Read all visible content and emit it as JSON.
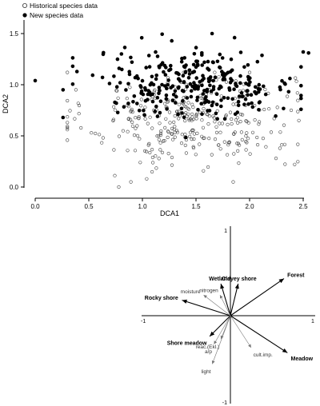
{
  "chart_data": [
    {
      "type": "scatter",
      "xlabel": "DCA1",
      "ylabel": "DCA2",
      "xlim": [
        -0.1,
        2.6
      ],
      "ylim": [
        -0.05,
        1.6
      ],
      "xticks": [
        "0.0",
        "0.5",
        "1.0",
        "1.5",
        "2.0",
        "2.5"
      ],
      "yticks": [
        "0.0",
        "0.5",
        "1.0",
        "1.5"
      ],
      "legend": {
        "placement": "top-left"
      },
      "series": [
        {
          "name": "Historical species data",
          "marker": "open-circle",
          "color": "#333333"
        },
        {
          "name": "New species data",
          "marker": "filled-circle",
          "color": "#000000"
        }
      ]
    },
    {
      "type": "biplot",
      "axis_tick_labels": {
        "top": "1",
        "bottom": "-1",
        "left": "-1",
        "right": "1"
      },
      "vectors": [
        {
          "label": "Forest",
          "x": 0.62,
          "y": 0.43,
          "bold": true,
          "color": "#000000"
        },
        {
          "label": "Clayey shore",
          "x": 0.09,
          "y": 0.37,
          "bold": true,
          "color": "#000000"
        },
        {
          "label": "Wetland",
          "x": -0.11,
          "y": 0.37,
          "bold": true,
          "color": "#000000"
        },
        {
          "label": "Rocky shore",
          "x": -0.56,
          "y": 0.18,
          "bold": true,
          "color": "#000000"
        },
        {
          "label": "Shore meadow",
          "x": -0.24,
          "y": -0.24,
          "bold": true,
          "color": "#000000"
        },
        {
          "label": "Meadow",
          "x": 0.66,
          "y": -0.43,
          "bold": true,
          "color": "#000000"
        },
        {
          "label": "moisture",
          "x": -0.31,
          "y": 0.24,
          "bold": false,
          "color": "#777777"
        },
        {
          "label": "nitrogen",
          "x": -0.12,
          "y": 0.24,
          "bold": false,
          "color": "#777777"
        },
        {
          "label": "reac.(Ekl.)",
          "x": -0.11,
          "y": -0.27,
          "bold": false,
          "color": "#777777"
        },
        {
          "label": "a/p",
          "x": -0.19,
          "y": -0.33,
          "bold": false,
          "color": "#777777"
        },
        {
          "label": "cult.imp.",
          "x": 0.24,
          "y": -0.37,
          "bold": false,
          "color": "#777777"
        },
        {
          "label": "light",
          "x": -0.21,
          "y": -0.56,
          "bold": false,
          "color": "#777777"
        }
      ]
    }
  ]
}
